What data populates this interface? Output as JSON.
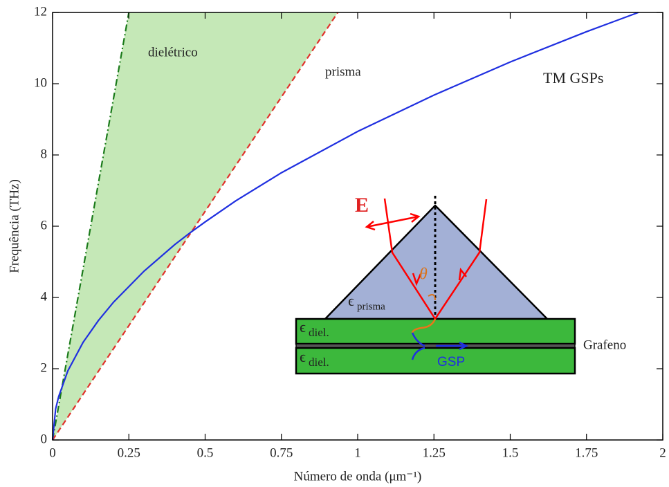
{
  "chart_data": {
    "type": "line",
    "xlabel": "Número de onda (μm⁻¹)",
    "ylabel": "Frequência (THz)",
    "xlim": [
      0,
      2
    ],
    "ylim": [
      0,
      12
    ],
    "xticks": [
      0,
      0.25,
      0.5,
      0.75,
      1,
      1.25,
      1.5,
      1.75,
      2
    ],
    "yticks": [
      0,
      2,
      4,
      6,
      8,
      10,
      12
    ],
    "series": [
      {
        "name": "dielétrico",
        "color": "#1a7a1a",
        "dash": "dashdot",
        "x": [
          0,
          0.25
        ],
        "values": [
          0,
          12
        ]
      },
      {
        "name": "prisma",
        "color": "#e0302a",
        "dash": "dashed",
        "x": [
          0,
          0.935
        ],
        "values": [
          0,
          12
        ]
      },
      {
        "name": "TM GSPs",
        "color": "#1f2fe0",
        "dash": "solid",
        "x": [
          0,
          0.01,
          0.02,
          0.05,
          0.1,
          0.15,
          0.2,
          0.3,
          0.4,
          0.45,
          0.5,
          0.6,
          0.75,
          1,
          1.25,
          1.5,
          1.75,
          1.92
        ],
        "values": [
          0,
          0.87,
          1.22,
          1.94,
          2.74,
          3.35,
          3.87,
          4.74,
          5.48,
          5.81,
          6.12,
          6.71,
          7.5,
          8.66,
          9.68,
          10.61,
          11.46,
          12.0
        ]
      }
    ],
    "fill_color": "#c5e8b7",
    "inset": {
      "field_label": "E",
      "angle_label": "θ",
      "prism_label": "ϵ",
      "prism_sub": "prisma",
      "diel_labels": [
        {
          "symbol": "ϵ",
          "sub": "diel."
        },
        {
          "symbol": "ϵ",
          "sub": "diel."
        }
      ],
      "graphene_label": "Grafeno",
      "gsp_label": "GSP"
    }
  }
}
